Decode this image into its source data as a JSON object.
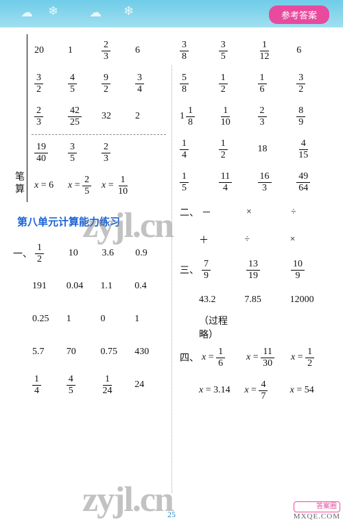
{
  "banner": {
    "answer_label": "参考答案",
    "clouds": [
      "☁",
      "❄",
      "☁",
      "❄"
    ]
  },
  "colors": {
    "banner_bg_top": "#6fcce8",
    "banner_bg_bottom": "#a0dff0",
    "tab_bg": "#e84a9e",
    "title_color": "#1a62d6",
    "text_color": "#111111",
    "watermark_color": "rgba(120,120,120,0.45)"
  },
  "left": {
    "vert_label": "笔算",
    "rows_top": [
      [
        "20",
        "1",
        {
          "n": "2",
          "d": "3"
        },
        "6"
      ],
      [
        {
          "n": "3",
          "d": "2"
        },
        {
          "n": "4",
          "d": "5"
        },
        {
          "n": "9",
          "d": "2"
        },
        {
          "n": "3",
          "d": "4"
        }
      ],
      [
        {
          "n": "2",
          "d": "3"
        },
        {
          "n": "42",
          "d": "25"
        },
        "32",
        "2"
      ]
    ],
    "row_bisuan": [
      {
        "n": "19",
        "d": "40"
      },
      {
        "n": "3",
        "d": "5"
      },
      {
        "n": "2",
        "d": "3"
      }
    ],
    "row_eq": [
      {
        "lhs": "x",
        "rhs": "6"
      },
      {
        "lhs": "x",
        "rhs": {
          "n": "2",
          "d": "5"
        }
      },
      {
        "lhs": "x",
        "rhs": {
          "n": "1",
          "d": "10"
        }
      }
    ],
    "section_title": "第八单元计算能力练习",
    "section_prefix": "一、",
    "rows_bottom": [
      [
        {
          "n": "1",
          "d": "2"
        },
        "10",
        "3.6",
        "0.9"
      ],
      [
        "191",
        "0.04",
        "1.1",
        "0.4"
      ],
      [
        "0.25",
        "1",
        "0",
        "1"
      ],
      [
        "5.7",
        "70",
        "0.75",
        "430"
      ],
      [
        {
          "n": "1",
          "d": "4"
        },
        {
          "n": "4",
          "d": "5"
        },
        {
          "n": "1",
          "d": "24"
        },
        "24"
      ]
    ]
  },
  "right": {
    "rows_top": [
      [
        {
          "n": "3",
          "d": "8"
        },
        {
          "n": "3",
          "d": "5"
        },
        {
          "n": "1",
          "d": "12"
        },
        "6"
      ],
      [
        {
          "n": "5",
          "d": "8"
        },
        {
          "n": "1",
          "d": "2"
        },
        {
          "n": "1",
          "d": "6"
        },
        {
          "n": "3",
          "d": "2"
        }
      ],
      [
        {
          "w": "1",
          "n": "1",
          "d": "8"
        },
        {
          "n": "1",
          "d": "10"
        },
        {
          "n": "2",
          "d": "3"
        },
        {
          "n": "8",
          "d": "9"
        }
      ],
      [
        {
          "n": "1",
          "d": "4"
        },
        {
          "n": "1",
          "d": "2"
        },
        "18",
        {
          "n": "4",
          "d": "15"
        }
      ],
      [
        {
          "n": "1",
          "d": "5"
        },
        {
          "n": "11",
          "d": "4"
        },
        {
          "n": "16",
          "d": "3"
        },
        {
          "n": "49",
          "d": "64"
        }
      ]
    ],
    "sec2_prefix": "二、",
    "sec2_rows": [
      [
        "－",
        "×",
        "÷"
      ],
      [
        "＋",
        "÷",
        "×"
      ]
    ],
    "sec3_prefix": "三、",
    "sec3_row1": [
      {
        "n": "7",
        "d": "9"
      },
      {
        "n": "13",
        "d": "19"
      },
      {
        "n": "10",
        "d": "9"
      }
    ],
    "sec3_row2": [
      "43.2",
      "7.85",
      "12000"
    ],
    "sec3_note": "（过程略）",
    "sec4_prefix": "四、",
    "sec4_eqs_row1": [
      {
        "lhs": "x",
        "rhs": {
          "n": "1",
          "d": "6"
        }
      },
      {
        "lhs": "x",
        "rhs": {
          "n": "11",
          "d": "30"
        }
      },
      {
        "lhs": "x",
        "rhs": {
          "n": "1",
          "d": "2"
        }
      }
    ],
    "sec4_eqs_row2": [
      {
        "lhs": "x",
        "rhs": "3.14"
      },
      {
        "lhs": "x",
        "rhs": {
          "n": "4",
          "d": "7"
        }
      },
      {
        "lhs": "x",
        "rhs": "54"
      }
    ]
  },
  "page_number": "25",
  "watermarks": {
    "text": "zyjl.cn",
    "corner_brand": "答案圈",
    "corner_site": "MXQE.COM"
  }
}
